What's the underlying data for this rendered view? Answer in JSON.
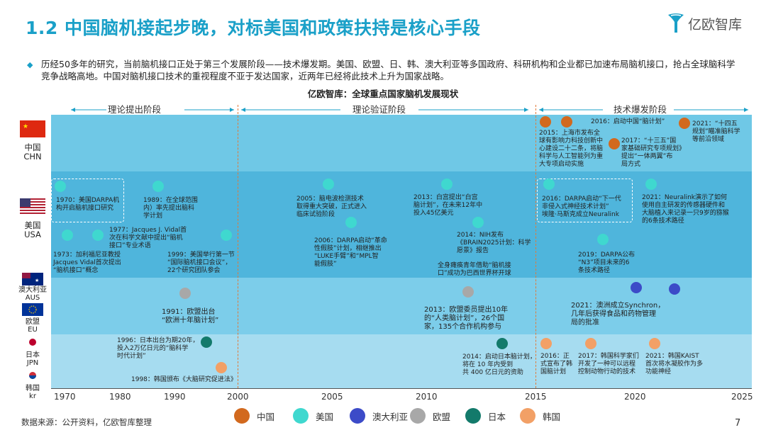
{
  "title": "1.2 中国脑机接起步晚，对标美国和政策扶持是核心手段",
  "logo_text": "亿欧智库",
  "intro": "历经50多年的研究，当前脑机接口正处于第三个发展阶段——技术爆发期。美国、欧盟、日、韩、澳大利亚等多国政府、科研机构和企业都已加速布局脑机接口，抢占全球脑科学竞争战略高地。中国对脑机接口技术的重视程度不亚于发达国家，近两年已经将此技术上升为国家战略。",
  "chart_title": "亿欧智库：全球重点国家脑机发展现状",
  "phases": [
    "理论提出阶段",
    "理论验证阶段",
    "技术爆发阶段"
  ],
  "countries": [
    {
      "zh": "中国",
      "en": "CHN"
    },
    {
      "zh": "美国",
      "en": "USA"
    },
    {
      "zh": "澳大利亚",
      "en": "AUS"
    },
    {
      "zh": "欧盟",
      "en": "EU"
    },
    {
      "zh": "日本",
      "en": "JPN"
    },
    {
      "zh": "韩国",
      "en": "kr"
    }
  ],
  "x_ticks": [
    "1970",
    "1980",
    "1990",
    "2000",
    "2005",
    "2010",
    "2015",
    "2020",
    "2025"
  ],
  "events": {
    "chn": [
      "2015：上海市发布全",
      "球有影响力科技创新中",
      "心建设二十二条，将脑",
      "科学与人工智能列为重",
      "大专项启动实施",
      "2016：启动中国“脑计划”",
      "2017：“十三五”国",
      "家基础研究专项规划》",
      "提出“一体两翼”布",
      "局方式",
      "2021：“十四五",
      "规划”瞄准脑科学",
      "等前沿领域"
    ],
    "usa": [
      "1970：美国DARPA机",
      "构开启脑机接口研究",
      "1973：加利福尼亚教授",
      "Jacques Vidal首次提出",
      "“脑机接口”概念",
      "1977：Jacques J. Vidal首",
      "次在科学文献中提出“脑机",
      "接口”专业术语",
      "1989：在全球范围",
      "内）率先提出脑科",
      "学计划",
      "1999：美国举行第一节",
      "“国际脑机接口会议”，",
      "22个研究团队参会",
      "2005：脑电波检测技术",
      "取得重大突破，正式进入",
      "临床试验阶段",
      "2006：DARPA启动“革命",
      "性假肢”计划，相继推出",
      "“LUKE手臂”和“MPL智",
      "能假肢”",
      "2013：白宫提出“白宫",
      "脑计划”，在未来12年中",
      "投入45亿美元",
      "2014：NIH发布",
      "《BRAIN2025计划：科学",
      "愿景》报告",
      "全身瘫痪青年借助“脑机接",
      "口”成功为巴西世界杯开球",
      "2016：DARPA启动“下一代",
      "非侵入式神经技术计划”",
      "埃隆·马斯克成立Neuralink",
      "2019：DARPA公布",
      "“N3”项目未来的6",
      "条技术路径",
      "2021：Neuralink演示了如何",
      "使用自主研发的传感器硬件和",
      "大脑植入来记录一只9岁的猕猴",
      "的6条技术路径"
    ],
    "aus": [
      "2021：澳洲成立Synchron，",
      "几年后获得食品和药物管理",
      "局的批准"
    ],
    "eu": [
      "1991：欧盟出台",
      "“欧洲十年脑计划”",
      "2013：欧盟委员提出10年",
      "的“人类脑计划”，26个国",
      "家，135个合作机构参与"
    ],
    "jpn": [
      "1996：日本出台为期20年，",
      "投入2万亿日元的“脑科学",
      "时代计划”",
      "2014：启动日本脑计划，",
      "将在 10 年内受到",
      "共 400 亿日元的资助"
    ],
    "kr": [
      "1998：韩国颁布《大脑研究促进法》",
      "2016：正",
      "式宣布了韩",
      "国脑计划",
      "2017：韩国科学家们",
      "开发了一种可以远程",
      "控制动物行动的技术",
      "2021：韩国KAIST",
      "首次将水凝胶作为多",
      "功能神经"
    ]
  },
  "legend": [
    {
      "label": "中国",
      "color": "#d2691e"
    },
    {
      "label": "美国",
      "color": "#3fd8cf"
    },
    {
      "label": "澳大利亚",
      "color": "#3c4bc8"
    },
    {
      "label": "欧盟",
      "color": "#a8a8a8"
    },
    {
      "label": "日本",
      "color": "#137a6b"
    },
    {
      "label": "韩国",
      "color": "#f2a066"
    }
  ],
  "source": "数据来源：公开资料，亿欧智库整理",
  "page_number": "7"
}
